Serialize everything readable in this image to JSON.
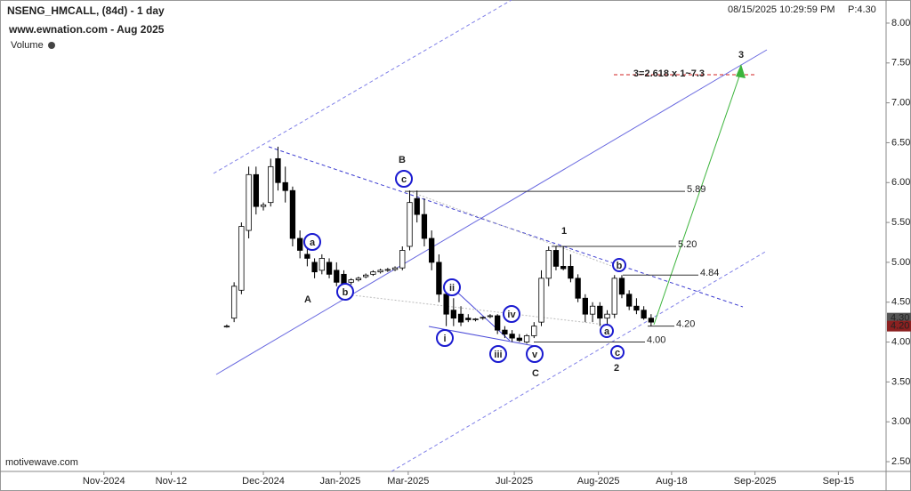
{
  "chart_data": {
    "type": "candlestick",
    "title": "NSENG_HMCALL, (84d) - 1 day",
    "subtitle": "www.ewnation.com  - Aug 2025",
    "volume_label": "Volume",
    "timestamp": "08/15/2025 10:29:59 PM",
    "price_text": "P:4.30",
    "footer": "motivewave.com",
    "x": [
      31,
      32,
      33,
      34,
      35,
      36,
      37,
      38,
      39,
      40,
      41,
      42,
      43,
      44,
      45,
      46,
      47,
      48,
      49,
      50,
      51,
      52,
      53,
      54,
      55,
      56,
      57,
      58,
      59,
      60,
      61,
      62,
      63,
      64,
      65,
      66,
      67,
      68,
      69,
      70,
      71,
      72,
      73,
      74,
      75,
      76,
      77,
      78,
      79,
      80,
      81,
      82,
      83,
      84,
      85,
      86,
      87,
      88,
      89
    ],
    "open": [
      4.2,
      4.3,
      4.65,
      5.4,
      6.1,
      5.7,
      5.75,
      6.3,
      6.0,
      5.9,
      5.3,
      5.1,
      5.0,
      4.9,
      5.0,
      4.9,
      4.85,
      4.75,
      4.78,
      4.82,
      4.85,
      4.88,
      4.9,
      4.91,
      4.93,
      5.2,
      5.8,
      5.6,
      5.3,
      5.0,
      4.6,
      4.4,
      4.35,
      4.3,
      4.28,
      4.3,
      4.32,
      4.33,
      4.15,
      4.1,
      4.05,
      4.0,
      4.08,
      4.25,
      4.8,
      5.15,
      4.95,
      4.95,
      4.8,
      4.55,
      4.35,
      4.45,
      4.3,
      4.35,
      4.8,
      4.6,
      4.45,
      4.4,
      4.3
    ],
    "high": [
      4.22,
      4.75,
      5.5,
      6.2,
      6.2,
      5.75,
      6.3,
      6.45,
      6.2,
      5.95,
      5.4,
      5.2,
      5.05,
      5.1,
      5.05,
      5.0,
      4.9,
      4.8,
      4.82,
      4.86,
      4.9,
      4.92,
      4.93,
      4.95,
      5.2,
      5.9,
      5.9,
      5.8,
      5.4,
      5.1,
      4.7,
      4.55,
      4.45,
      4.35,
      4.3,
      4.32,
      4.35,
      4.35,
      4.2,
      4.15,
      4.1,
      4.1,
      4.25,
      4.9,
      5.2,
      5.2,
      5.2,
      5.1,
      4.85,
      4.6,
      4.5,
      4.5,
      4.4,
      4.84,
      4.84,
      4.65,
      4.55,
      4.45,
      4.35
    ],
    "low": [
      4.18,
      4.25,
      4.6,
      5.3,
      5.6,
      5.65,
      5.7,
      5.9,
      5.75,
      5.2,
      5.05,
      4.95,
      4.8,
      4.85,
      4.8,
      4.7,
      4.6,
      4.72,
      4.76,
      4.8,
      4.83,
      4.86,
      4.88,
      4.89,
      4.9,
      5.15,
      5.5,
      5.2,
      4.9,
      4.5,
      4.2,
      4.2,
      4.2,
      4.25,
      4.26,
      4.28,
      4.3,
      4.1,
      4.05,
      4.0,
      4.0,
      3.98,
      4.05,
      4.2,
      4.7,
      4.9,
      4.9,
      4.75,
      4.5,
      4.25,
      4.25,
      4.2,
      4.15,
      4.3,
      4.55,
      4.4,
      4.35,
      4.28,
      4.2
    ],
    "close": [
      4.2,
      4.7,
      5.45,
      6.1,
      5.7,
      5.72,
      6.2,
      6.0,
      5.9,
      5.3,
      5.15,
      5.05,
      4.88,
      5.05,
      4.85,
      4.75,
      4.65,
      4.78,
      4.8,
      4.84,
      4.88,
      4.9,
      4.91,
      4.93,
      5.15,
      5.75,
      5.6,
      5.3,
      5.0,
      4.6,
      4.35,
      4.3,
      4.25,
      4.28,
      4.29,
      4.31,
      4.33,
      4.15,
      4.1,
      4.05,
      4.02,
      4.08,
      4.2,
      4.8,
      5.15,
      4.95,
      4.92,
      4.8,
      4.55,
      4.35,
      4.45,
      4.3,
      4.35,
      4.8,
      4.6,
      4.45,
      4.4,
      4.3,
      4.25
    ],
    "xlim": [
      0,
      121
    ],
    "xticks": [
      {
        "value": 14.2,
        "label": "Nov-2024"
      },
      {
        "value": 23.4,
        "label": "Nov-12"
      },
      {
        "value": 36,
        "label": "Dec-2024"
      },
      {
        "value": 46.5,
        "label": "Jan-2025"
      },
      {
        "value": 55.8,
        "label": "Mar-2025"
      },
      {
        "value": 70.3,
        "label": "Jul-2025"
      },
      {
        "value": 81.8,
        "label": "Aug-2025"
      },
      {
        "value": 91.8,
        "label": "Aug-18"
      },
      {
        "value": 103.2,
        "label": "Sep-2025"
      },
      {
        "value": 114.6,
        "label": "Sep-15"
      }
    ],
    "ylim": [
      2.4,
      8.1
    ],
    "yticks": [
      {
        "value": 2.5,
        "label": "2.50"
      },
      {
        "value": 3,
        "label": "3.00"
      },
      {
        "value": 3.5,
        "label": "3.50"
      },
      {
        "value": 4,
        "label": "4.00"
      },
      {
        "value": 4.5,
        "label": "4.50"
      },
      {
        "value": 5,
        "label": "5.00"
      },
      {
        "value": 5.5,
        "label": "5.50"
      },
      {
        "value": 6,
        "label": "6.00"
      },
      {
        "value": 6.5,
        "label": "6.50"
      },
      {
        "value": 7,
        "label": "7.00"
      },
      {
        "value": 7.5,
        "label": "7.50"
      },
      {
        "value": 8,
        "label": "8.00"
      }
    ],
    "grid": false,
    "levels": [
      {
        "value": 5.89,
        "label": "5.89"
      },
      {
        "value": 5.2,
        "label": "5.20"
      },
      {
        "value": 4.84,
        "label": "4.84"
      },
      {
        "value": 4.2,
        "label": "4.20"
      },
      {
        "value": 4,
        "label": "4.00"
      }
    ],
    "price_tags": [
      {
        "value": 4.3,
        "label": "4.30",
        "color": "#555555"
      },
      {
        "value": 4.2,
        "label": "4.20",
        "color": "#8b2020"
      }
    ],
    "annotations": [
      "a",
      "b",
      "c",
      "B",
      "A",
      "ii",
      "i",
      "iii",
      "iv",
      "v",
      "C",
      "1",
      "b",
      "a",
      "c",
      "2",
      "3",
      "3=2.618 x 1~7.3"
    ]
  }
}
